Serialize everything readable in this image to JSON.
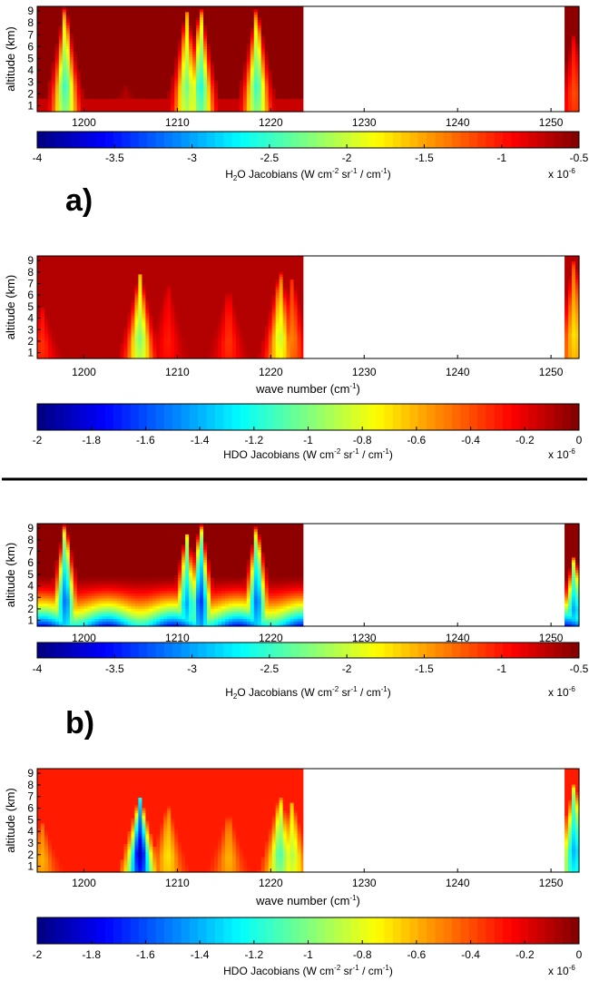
{
  "sections": [
    {
      "label": "a)"
    },
    {
      "label": "b)"
    }
  ],
  "chart_data": [
    {
      "type": "heatmap",
      "section": 0,
      "species": "H2O",
      "xlabel": "",
      "ylabel": "altitude (km)",
      "xlim": [
        1195,
        1253
      ],
      "ylim": [
        0.5,
        9.4
      ],
      "xticks": [
        1200,
        1210,
        1220,
        1230,
        1240,
        1250
      ],
      "yticks": [
        1,
        2,
        3,
        4,
        5,
        6,
        7,
        8,
        9
      ],
      "data_gap": [
        1223.5,
        1251.3
      ],
      "background_value": -0.55,
      "floor_value": -0.75,
      "plumes": [
        {
          "x": 1198,
          "min_value": -2.5,
          "top_km": 9.3
        },
        {
          "x": 1204.5,
          "min_value": -0.7,
          "top_km": 2.8
        },
        {
          "x": 1211,
          "min_value": -2.3,
          "top_km": 9.0
        },
        {
          "x": 1212.5,
          "min_value": -2.6,
          "top_km": 9.2
        },
        {
          "x": 1218.5,
          "min_value": -2.5,
          "top_km": 9.2
        },
        {
          "x": 1252.5,
          "min_value": -1.2,
          "top_km": 7.0
        }
      ],
      "colorbar": {
        "min": -4,
        "max": -0.5,
        "ticks": [
          "-4",
          "-3.5",
          "-3",
          "-2.5",
          "-2",
          "-1.5",
          "-1",
          "-0.5"
        ],
        "label_pre": "H",
        "label_sub": "2",
        "label_mid": "O Jacobians (W cm",
        "label_sup1": "-2",
        "label_sr": " sr",
        "label_sup2": "-1",
        "label_post": " / cm",
        "label_sup3": "-1",
        "label_end": ")",
        "scale_base": "x 10",
        "scale_exp": "-6"
      }
    },
    {
      "type": "heatmap",
      "section": 0,
      "species": "HDO",
      "xlabel": "wave number (cm",
      "xlabel_sup": "-1",
      "xlabel_end": ")",
      "ylabel": "altitude (km)",
      "xlim": [
        1195,
        1253
      ],
      "ylim": [
        0.5,
        9.4
      ],
      "xticks": [
        1200,
        1210,
        1220,
        1230,
        1240,
        1250
      ],
      "yticks": [
        1,
        2,
        3,
        4,
        5,
        6,
        7,
        8,
        9
      ],
      "data_gap": [
        1223.5,
        1251.3
      ],
      "background_value": -0.1,
      "plumes": [
        {
          "x": 1195.5,
          "min_value": -0.35,
          "top_km": 5.0
        },
        {
          "x": 1206,
          "min_value": -1.0,
          "top_km": 7.8
        },
        {
          "x": 1209,
          "min_value": -0.3,
          "top_km": 7.0
        },
        {
          "x": 1215.5,
          "min_value": -0.35,
          "top_km": 6.5
        },
        {
          "x": 1221,
          "min_value": -0.85,
          "top_km": 8.0
        },
        {
          "x": 1222.3,
          "min_value": -0.5,
          "top_km": 7.5
        },
        {
          "x": 1252.5,
          "min_value": -0.7,
          "top_km": 9.0
        }
      ],
      "colorbar": {
        "min": -2,
        "max": 0,
        "ticks": [
          "-2",
          "-1.8",
          "-1.6",
          "-1.4",
          "-1.2",
          "-1",
          "-0.8",
          "-0.6",
          "-0.4",
          "-0.2",
          "0"
        ],
        "label_pre": "HDO Jacobians (W cm",
        "label_sub": "",
        "label_mid": "",
        "label_sup1": "-2",
        "label_sr": " sr",
        "label_sup2": "-1",
        "label_post": " / cm",
        "label_sup3": "-1",
        "label_end": ")",
        "scale_base": "x 10",
        "scale_exp": "-6"
      }
    },
    {
      "type": "heatmap",
      "section": 1,
      "species": "H2O",
      "xlabel": "",
      "ylabel": "altitude (km)",
      "xlim": [
        1195,
        1253
      ],
      "ylim": [
        0.5,
        9.4
      ],
      "xticks": [
        1200,
        1210,
        1220,
        1230,
        1240,
        1250
      ],
      "yticks": [
        1,
        2,
        3,
        4,
        5,
        6,
        7,
        8,
        9
      ],
      "data_gap": [
        1223.5,
        1251.3
      ],
      "background_value": -0.55,
      "surface_gradient": {
        "surface_value": -3.6,
        "depth_km": 5.0
      },
      "plumes": [
        {
          "x": 1198,
          "min_value": -3.2,
          "top_km": 9.3
        },
        {
          "x": 1211,
          "min_value": -3.0,
          "top_km": 8.5
        },
        {
          "x": 1212.5,
          "min_value": -3.4,
          "top_km": 9.3
        },
        {
          "x": 1218.5,
          "min_value": -3.2,
          "top_km": 9.2
        },
        {
          "x": 1252.5,
          "min_value": -3.0,
          "top_km": 6.5
        }
      ],
      "colorbar": {
        "min": -4,
        "max": -0.5,
        "ticks": [
          "-4",
          "-3.5",
          "-3",
          "-2.5",
          "-2",
          "-1.5",
          "-1",
          "-0.5"
        ],
        "label_pre": "H",
        "label_sub": "2",
        "label_mid": "O Jacobians (W cm",
        "label_sup1": "-2",
        "label_sr": " sr",
        "label_sup2": "-1",
        "label_post": " / cm",
        "label_sup3": "-1",
        "label_end": ")",
        "scale_base": "x 10",
        "scale_exp": "-6"
      }
    },
    {
      "type": "heatmap",
      "section": 1,
      "species": "HDO",
      "xlabel": "wave number (cm",
      "xlabel_sup": "-1",
      "xlabel_end": ")",
      "ylabel": "altitude (km)",
      "xlim": [
        1195,
        1253
      ],
      "ylim": [
        0.5,
        9.4
      ],
      "xticks": [
        1200,
        1210,
        1220,
        1230,
        1240,
        1250
      ],
      "yticks": [
        1,
        2,
        3,
        4,
        5,
        6,
        7,
        8,
        9
      ],
      "data_gap": [
        1223.5,
        1251.3
      ],
      "background_value": -0.3,
      "plumes": [
        {
          "x": 1195.5,
          "min_value": -0.6,
          "top_km": 4.8
        },
        {
          "x": 1206,
          "min_value": -1.9,
          "top_km": 7.0
        },
        {
          "x": 1209,
          "min_value": -0.7,
          "top_km": 6.2
        },
        {
          "x": 1215.5,
          "min_value": -0.6,
          "top_km": 5.5
        },
        {
          "x": 1221,
          "min_value": -1.1,
          "top_km": 7.0
        },
        {
          "x": 1222.3,
          "min_value": -0.9,
          "top_km": 6.5
        },
        {
          "x": 1252.5,
          "min_value": -1.4,
          "top_km": 8.0
        }
      ],
      "colorbar": {
        "min": -2,
        "max": 0,
        "ticks": [
          "-2",
          "-1.8",
          "-1.6",
          "-1.4",
          "-1.2",
          "-1",
          "-0.8",
          "-0.6",
          "-0.4",
          "-0.2",
          "0"
        ],
        "label_pre": "HDO Jacobians (W cm",
        "label_sub": "",
        "label_mid": "",
        "label_sup1": "-2",
        "label_sr": " sr",
        "label_sup2": "-1",
        "label_post": " / cm",
        "label_sup3": "-1",
        "label_end": ")",
        "scale_base": "x 10",
        "scale_exp": "-6"
      }
    }
  ]
}
